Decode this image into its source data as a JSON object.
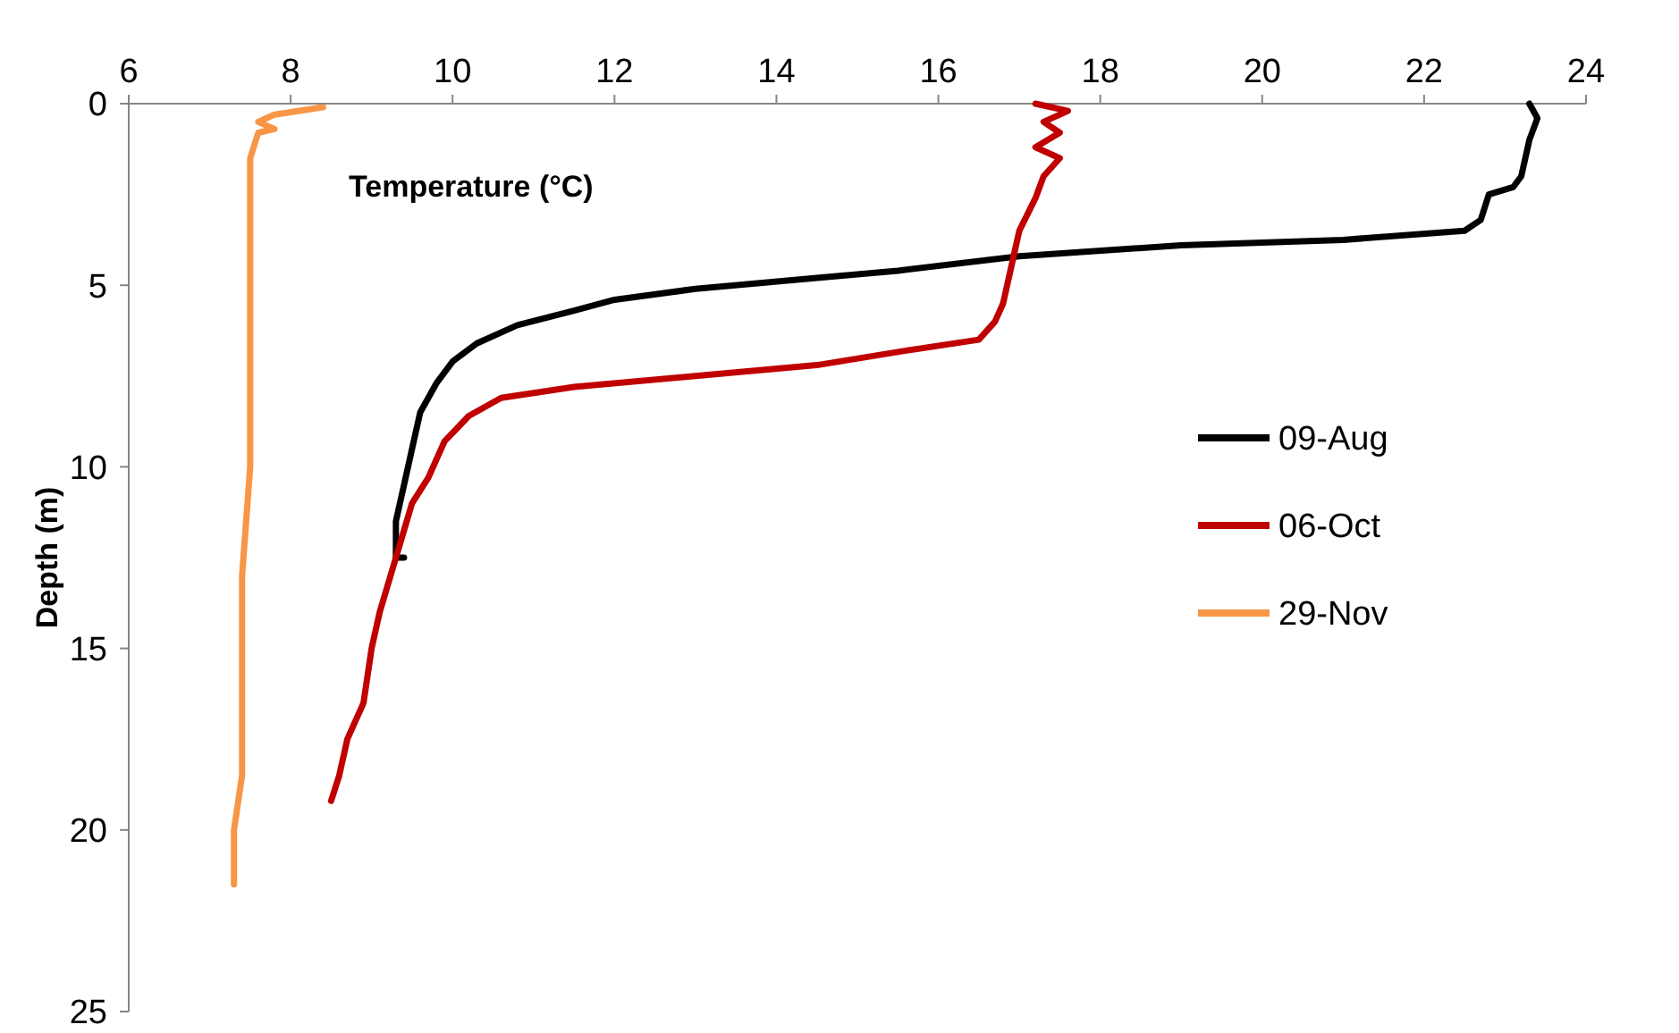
{
  "chart_data": {
    "type": "line",
    "xlabel": "Temperature (°C)",
    "ylabel": "Depth (m)",
    "xlim": [
      6,
      24
    ],
    "xticks": [
      6,
      8,
      10,
      12,
      14,
      16,
      18,
      20,
      22,
      24
    ],
    "ylim": [
      25,
      0
    ],
    "yticks": [
      0,
      5,
      10,
      15,
      20,
      25
    ],
    "grid": false,
    "legend": "right",
    "marker": "none",
    "line_style": "solid",
    "series": [
      {
        "name": "09-Aug",
        "color": "#000000",
        "x": [
          23.3,
          23.4,
          23.3,
          23.2,
          23.1,
          22.8,
          22.7,
          22.5,
          21,
          19,
          17,
          15.5,
          14.5,
          13,
          12,
          11.5,
          10.8,
          10.3,
          10,
          9.8,
          9.6,
          9.5,
          9.4,
          9.3,
          9.3,
          9.4
        ],
        "values": [
          0,
          0.4,
          1,
          2,
          2.3,
          2.5,
          3.2,
          3.5,
          3.75,
          3.9,
          4.2,
          4.6,
          4.8,
          5.1,
          5.4,
          5.7,
          6.1,
          6.6,
          7.1,
          7.7,
          8.5,
          9.5,
          10.5,
          11.5,
          12.5,
          12.5
        ]
      },
      {
        "name": "06-Oct",
        "color": "#c00000",
        "x": [
          17.2,
          17.6,
          17.3,
          17.5,
          17.2,
          17.5,
          17.3,
          17.2,
          17,
          16.9,
          16.8,
          16.7,
          16.5,
          15.6,
          14.5,
          13,
          11.5,
          10.6,
          10.2,
          9.9,
          9.7,
          9.5,
          9.3,
          9.1,
          9,
          8.9,
          8.7,
          8.6,
          8.5
        ],
        "values": [
          0,
          0.2,
          0.5,
          0.8,
          1.2,
          1.5,
          2,
          2.6,
          3.5,
          4.5,
          5.5,
          6,
          6.5,
          6.8,
          7.2,
          7.5,
          7.8,
          8.1,
          8.6,
          9.3,
          10.3,
          11,
          12.5,
          14,
          15,
          16.5,
          17.5,
          18.5,
          19.2
        ]
      },
      {
        "name": "29-Nov",
        "color": "#f79646",
        "x": [
          8.4,
          7.8,
          7.6,
          7.8,
          7.6,
          7.5,
          7.5,
          7.5,
          7.5,
          7.4,
          7.4,
          7.3,
          7.3
        ],
        "values": [
          0.1,
          0.3,
          0.5,
          0.7,
          0.8,
          1.5,
          2.5,
          5,
          10,
          13,
          18.5,
          20,
          21.5
        ]
      }
    ]
  }
}
